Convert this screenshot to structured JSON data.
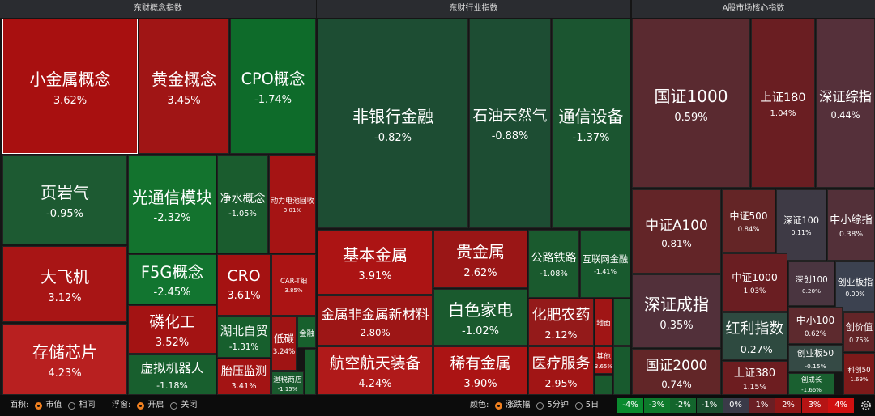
{
  "panels": [
    {
      "title": "东财概念指数",
      "tiles": [
        {
          "name": "小金属概念",
          "change": "3.62%"
        },
        {
          "name": "黄金概念",
          "change": "3.45%"
        },
        {
          "name": "CPO概念",
          "change": "-1.74%"
        },
        {
          "name": "页岩气",
          "change": "-0.95%"
        },
        {
          "name": "光通信模块",
          "change": "-2.32%"
        },
        {
          "name": "净水概念",
          "change": "-1.05%"
        },
        {
          "name": "动力电池回收",
          "change": "3.01%"
        },
        {
          "name": "大飞机",
          "change": "3.12%"
        },
        {
          "name": "F5G概念",
          "change": "-2.45%"
        },
        {
          "name": "CRO",
          "change": "3.61%"
        },
        {
          "name": "CAR-T细",
          "change": "3.85%"
        },
        {
          "name": "存储芯片",
          "change": "4.23%"
        },
        {
          "name": "磷化工",
          "change": "3.52%"
        },
        {
          "name": "湖北自贸",
          "change": "-1.31%"
        },
        {
          "name": "低碳",
          "change": "3.24%"
        },
        {
          "name": "金融"
        },
        {
          "name": "虚拟机器人",
          "change": "-1.18%"
        },
        {
          "name": "胎压监测",
          "change": "3.41%"
        },
        {
          "name": "退税商店",
          "change": "-1.15%"
        }
      ]
    },
    {
      "title": "东财行业指数",
      "tiles": [
        {
          "name": "非银行金融",
          "change": "-0.82%"
        },
        {
          "name": "石油天然气",
          "change": "-0.88%"
        },
        {
          "name": "通信设备",
          "change": "-1.37%"
        },
        {
          "name": "基本金属",
          "change": "3.91%"
        },
        {
          "name": "贵金属",
          "change": "2.62%"
        },
        {
          "name": "公路铁路",
          "change": "-1.08%"
        },
        {
          "name": "互联网金融",
          "change": "-1.41%"
        },
        {
          "name": "金属非金属新材料",
          "change": "2.80%"
        },
        {
          "name": "白色家电",
          "change": "-1.02%"
        },
        {
          "name": "化肥农药",
          "change": "2.12%"
        },
        {
          "name": "地面"
        },
        {
          "name": "航空航天装备",
          "change": "4.24%"
        },
        {
          "name": "稀有金属",
          "change": "3.90%"
        },
        {
          "name": "医疗服务",
          "change": "2.95%"
        },
        {
          "name": "其他",
          "change": "3.65%"
        }
      ]
    },
    {
      "title": "A股市场核心指数",
      "tiles": [
        {
          "name": "国证1000",
          "change": "0.59%"
        },
        {
          "name": "上证180",
          "change": "1.04%"
        },
        {
          "name": "深证综指",
          "change": "0.44%"
        },
        {
          "name": "中证A100",
          "change": "0.81%"
        },
        {
          "name": "中证500",
          "change": "0.84%"
        },
        {
          "name": "深证100",
          "change": "0.11%"
        },
        {
          "name": "中小综指",
          "change": "0.38%"
        },
        {
          "name": "深证成指",
          "change": "0.35%"
        },
        {
          "name": "中证1000",
          "change": "1.03%"
        },
        {
          "name": "深创100",
          "change": "0.20%"
        },
        {
          "name": "创业板指",
          "change": "0.00%"
        },
        {
          "name": "红利指数",
          "change": "-0.27%"
        },
        {
          "name": "中小100",
          "change": "0.62%"
        },
        {
          "name": "创价值",
          "change": "0.75%"
        },
        {
          "name": "创业板50",
          "change": "-0.15%"
        },
        {
          "name": "国证2000",
          "change": "0.74%"
        },
        {
          "name": "上证380",
          "change": "1.15%"
        },
        {
          "name": "创成长",
          "change": "-1.66%"
        },
        {
          "name": "科创50",
          "change": "1.69%"
        }
      ]
    }
  ],
  "toolbar": {
    "area_label": "面积:",
    "area_options": [
      "市值",
      "相同"
    ],
    "popup_label": "浮窗:",
    "popup_options": [
      "开启",
      "关闭"
    ],
    "color_label": "颜色:",
    "color_options": [
      "涨跌幅",
      "5分钟",
      "5日"
    ],
    "legend": [
      "-4%",
      "-3%",
      "-2%",
      "-1%",
      "0%",
      "1%",
      "2%",
      "3%",
      "4%"
    ]
  }
}
